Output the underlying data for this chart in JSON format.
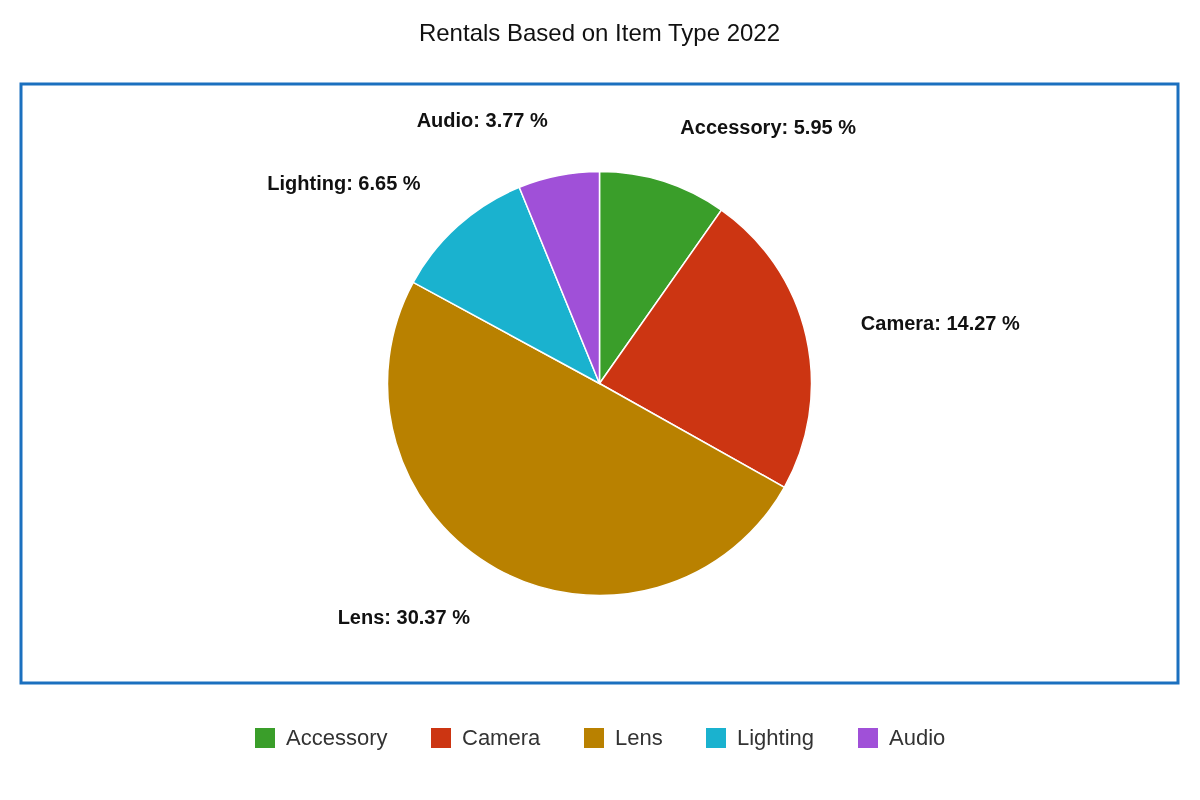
{
  "chart_data": {
    "type": "pie",
    "title": "Rentals Based on Item Type 2022",
    "categories": [
      "Accessory",
      "Camera",
      "Lens",
      "Lighting",
      "Audio"
    ],
    "values": [
      5.95,
      14.27,
      30.37,
      6.65,
      3.77
    ],
    "colors": [
      "#3a9e2a",
      "#cc3512",
      "#b98100",
      "#1ab2cf",
      "#a050d8"
    ],
    "value_labels": [
      "Accessory: 5.95 %",
      "Camera: 14.27 %",
      "Lens: 30.37 %",
      "Lighting: 6.65 %",
      "Audio: 3.77 %"
    ],
    "legend": "bottom"
  }
}
